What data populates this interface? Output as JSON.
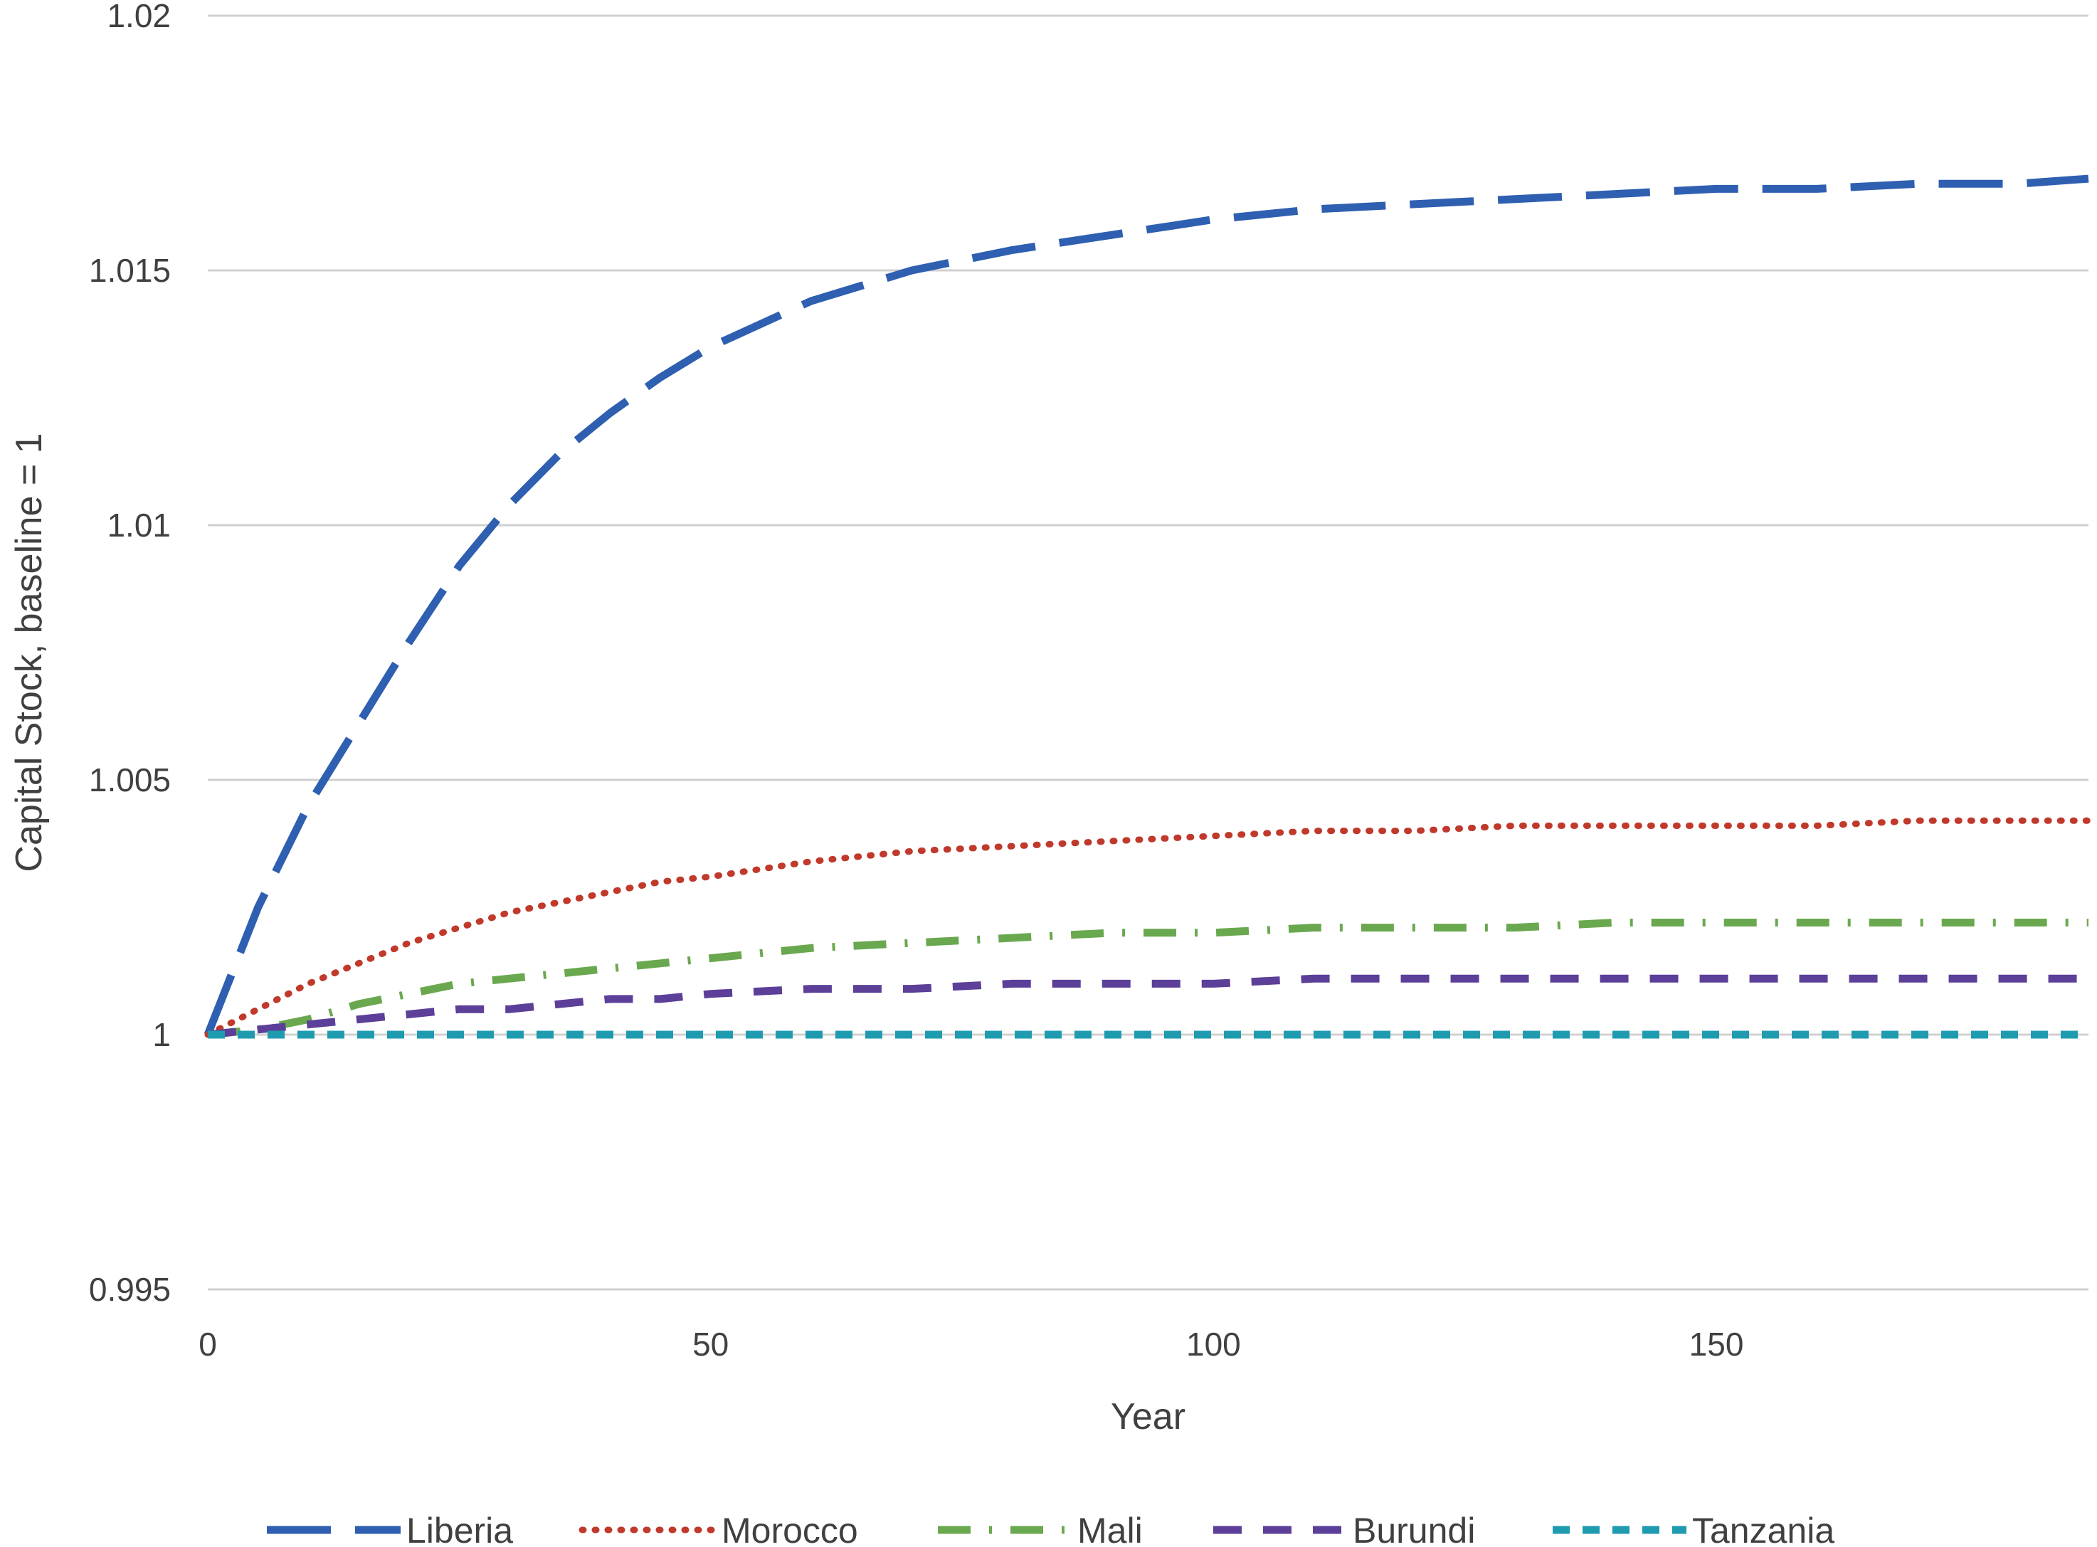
{
  "chart_data": {
    "type": "line",
    "xlabel": "Year",
    "ylabel": "Capital Stock, baseline = 1",
    "xlim": [
      0,
      187
    ],
    "ylim": [
      0.995,
      1.02
    ],
    "xticks": [
      0,
      50,
      100,
      150
    ],
    "yticks": [
      0.995,
      1,
      1.005,
      1.01,
      1.015,
      1.02
    ],
    "xtick_labels": [
      "0",
      "50",
      "100",
      "150"
    ],
    "ytick_labels": [
      "0.995",
      "1",
      "1.005",
      "1.01",
      "1.015",
      "1.02"
    ],
    "grid": "horizontal",
    "legend_position": "bottom",
    "x": [
      0,
      5,
      10,
      15,
      20,
      25,
      30,
      35,
      40,
      45,
      50,
      60,
      70,
      80,
      90,
      100,
      110,
      120,
      130,
      140,
      150,
      160,
      170,
      180,
      187
    ],
    "series": [
      {
        "name": "Liberia",
        "color": "#2e5fb0",
        "dash": "long-dash",
        "values": [
          1.0,
          1.0025,
          1.0045,
          1.0061,
          1.0077,
          1.0092,
          1.0104,
          1.0114,
          1.0122,
          1.0129,
          1.0135,
          1.0144,
          1.015,
          1.0154,
          1.0157,
          1.016,
          1.0162,
          1.0163,
          1.0164,
          1.0165,
          1.0166,
          1.0166,
          1.0167,
          1.0167,
          1.0168
        ]
      },
      {
        "name": "Morocco",
        "color": "#c0392b",
        "dash": "dotted",
        "values": [
          1.0,
          1.0005,
          1.001,
          1.0014,
          1.0018,
          1.0021,
          1.0024,
          1.0026,
          1.0028,
          1.003,
          1.0031,
          1.0034,
          1.0036,
          1.0037,
          1.0038,
          1.0039,
          1.004,
          1.004,
          1.0041,
          1.0041,
          1.0041,
          1.0041,
          1.0042,
          1.0042,
          1.0042
        ]
      },
      {
        "name": "Mali",
        "color": "#6aa84f",
        "dash": "dash-dot",
        "values": [
          1.0,
          1.0001,
          1.0003,
          1.0006,
          1.0008,
          1.001,
          1.0011,
          1.0012,
          1.0013,
          1.0014,
          1.0015,
          1.0017,
          1.0018,
          1.0019,
          1.002,
          1.002,
          1.0021,
          1.0021,
          1.0021,
          1.0022,
          1.0022,
          1.0022,
          1.0022,
          1.0022,
          1.0022
        ]
      },
      {
        "name": "Burundi",
        "color": "#5b3f99",
        "dash": "dash",
        "values": [
          1.0,
          1.0001,
          1.0002,
          1.0003,
          1.0004,
          1.0005,
          1.0005,
          1.0006,
          1.0007,
          1.0007,
          1.0008,
          1.0009,
          1.0009,
          1.001,
          1.001,
          1.001,
          1.0011,
          1.0011,
          1.0011,
          1.0011,
          1.0011,
          1.0011,
          1.0011,
          1.0011,
          1.0011
        ]
      },
      {
        "name": "Tanzania",
        "color": "#1f9bb0",
        "dash": "short-dash",
        "values": [
          1.0,
          1.0,
          1.0,
          1.0,
          1.0,
          1.0,
          1.0,
          1.0,
          1.0,
          1.0,
          1.0,
          1.0,
          1.0,
          1.0,
          1.0,
          1.0,
          1.0,
          1.0,
          1.0,
          1.0,
          1.0,
          1.0,
          1.0,
          1.0,
          1.0
        ]
      }
    ]
  }
}
